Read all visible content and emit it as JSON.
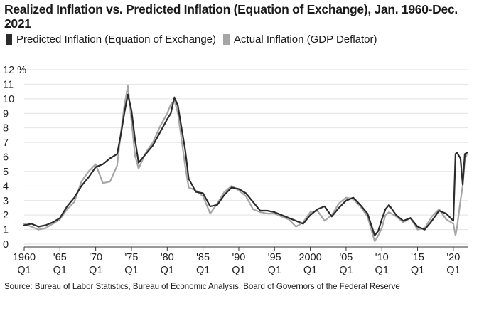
{
  "title": "Realized Inflation vs. Predicted Inflation (Equation of Exchange), Jan. 1960-Dec. 2021",
  "legend": {
    "predicted_label": "Predicted Inflation (Equation of Exchange)",
    "actual_label": "Actual Inflation (GDP Deflator)"
  },
  "source": "Source: Bureau of Labor Statistics, Bureau of Economic Analysis, Board of Governors of the Federal Reserve",
  "colors": {
    "predicted": "#2b2b2b",
    "actual": "#a6a6a6",
    "grid": "#e2e2e2"
  },
  "chart_data": {
    "type": "line",
    "ylim": [
      0,
      12
    ],
    "xlim": [
      1960,
      2022
    ],
    "y_unit_suffix": " %",
    "y_ticks": [
      0,
      1,
      2,
      3,
      4,
      5,
      6,
      7,
      8,
      9,
      10,
      11,
      12
    ],
    "x_ticks": [
      {
        "value": 1960,
        "line1": "1960",
        "line2": "Q1"
      },
      {
        "value": 1965,
        "line1": "'65",
        "line2": "Q1"
      },
      {
        "value": 1970,
        "line1": "'70",
        "line2": "Q1"
      },
      {
        "value": 1975,
        "line1": "'75",
        "line2": "Q1"
      },
      {
        "value": 1980,
        "line1": "'80",
        "line2": "Q1"
      },
      {
        "value": 1985,
        "line1": "'85",
        "line2": "Q1"
      },
      {
        "value": 1990,
        "line1": "'90",
        "line2": "Q1"
      },
      {
        "value": 1995,
        "line1": "'95",
        "line2": "Q1"
      },
      {
        "value": 2000,
        "line1": "2000",
        "line2": "Q1"
      },
      {
        "value": 2005,
        "line1": "'05",
        "line2": "Q1"
      },
      {
        "value": 2010,
        "line1": "'10",
        "line2": "Q1"
      },
      {
        "value": 2015,
        "line1": "'15",
        "line2": "Q1"
      },
      {
        "value": 2020,
        "line1": "'20",
        "line2": "Q1"
      }
    ],
    "grid": true,
    "legend_position": "top-left",
    "series": [
      {
        "name": "Predicted Inflation (Equation of Exchange)",
        "x": [
          1960,
          1961,
          1962,
          1963,
          1964,
          1965,
          1966,
          1967,
          1968,
          1969,
          1970,
          1971,
          1972,
          1973,
          1973.5,
          1974,
          1974.5,
          1975,
          1975.5,
          1976,
          1977,
          1978,
          1979,
          1980,
          1980.5,
          1981,
          1981.5,
          1982,
          1982.5,
          1983,
          1984,
          1985,
          1986,
          1987,
          1988,
          1989,
          1990,
          1991,
          1992,
          1993,
          1994,
          1995,
          1996,
          1997,
          1998,
          1999,
          2000,
          2001,
          2002,
          2003,
          2004,
          2005,
          2006,
          2007,
          2008,
          2009,
          2009.5,
          2010,
          2010.5,
          2011,
          2012,
          2013,
          2014,
          2015,
          2016,
          2017,
          2018,
          2019,
          2020,
          2020.3,
          2020.5,
          2021,
          2021.3,
          2021.6,
          2021.9
        ],
        "y": [
          1.3,
          1.4,
          1.2,
          1.3,
          1.5,
          1.8,
          2.6,
          3.2,
          4.0,
          4.6,
          5.3,
          5.5,
          5.9,
          6.2,
          7.5,
          9.0,
          10.3,
          9.2,
          7.2,
          5.6,
          6.2,
          6.8,
          7.7,
          8.6,
          9.0,
          10.1,
          9.5,
          8.0,
          6.5,
          4.5,
          3.6,
          3.5,
          2.6,
          2.7,
          3.4,
          3.9,
          3.8,
          3.5,
          2.9,
          2.3,
          2.3,
          2.2,
          2.0,
          1.8,
          1.6,
          1.4,
          2.0,
          2.4,
          2.6,
          1.9,
          2.5,
          3.0,
          3.2,
          2.7,
          2.1,
          0.6,
          0.9,
          1.7,
          2.4,
          2.7,
          2.0,
          1.6,
          1.8,
          1.2,
          1.0,
          1.6,
          2.3,
          2.1,
          1.6,
          6.2,
          6.3,
          5.9,
          4.1,
          6.2,
          6.3
        ]
      },
      {
        "name": "Actual Inflation (GDP Deflator)",
        "x": [
          1960,
          1961,
          1962,
          1963,
          1964,
          1965,
          1966,
          1967,
          1968,
          1969,
          1970,
          1971,
          1972,
          1973,
          1973.5,
          1974,
          1974.5,
          1975,
          1975.5,
          1976,
          1977,
          1978,
          1979,
          1980,
          1980.5,
          1981,
          1981.5,
          1982,
          1982.5,
          1983,
          1984,
          1985,
          1986,
          1987,
          1988,
          1989,
          1990,
          1991,
          1992,
          1993,
          1994,
          1995,
          1996,
          1997,
          1998,
          1999,
          2000,
          2001,
          2002,
          2003,
          2004,
          2005,
          2006,
          2007,
          2008,
          2009,
          2009.5,
          2010,
          2010.5,
          2011,
          2012,
          2013,
          2014,
          2015,
          2016,
          2017,
          2018,
          2019,
          2020,
          2020.3,
          2020.5,
          2021,
          2021.3,
          2021.6,
          2021.9
        ],
        "y": [
          1.4,
          1.2,
          1.0,
          1.1,
          1.4,
          1.7,
          2.4,
          2.9,
          4.3,
          5.0,
          5.5,
          4.2,
          4.3,
          5.4,
          7.6,
          9.5,
          10.9,
          8.5,
          6.1,
          5.2,
          6.3,
          7.0,
          8.1,
          9.0,
          9.6,
          9.9,
          9.0,
          7.2,
          5.4,
          3.9,
          3.7,
          3.3,
          2.1,
          2.8,
          3.6,
          4.0,
          3.7,
          3.3,
          2.4,
          2.2,
          2.1,
          2.1,
          1.9,
          1.7,
          1.2,
          1.5,
          2.2,
          2.3,
          1.6,
          2.0,
          2.8,
          3.2,
          3.1,
          2.6,
          1.9,
          0.2,
          0.6,
          1.1,
          2.0,
          2.2,
          1.9,
          1.5,
          1.8,
          1.0,
          1.1,
          1.9,
          2.4,
          1.7,
          1.4,
          0.6,
          1.1,
          3.0,
          4.0,
          5.8,
          6.2
        ]
      }
    ]
  }
}
